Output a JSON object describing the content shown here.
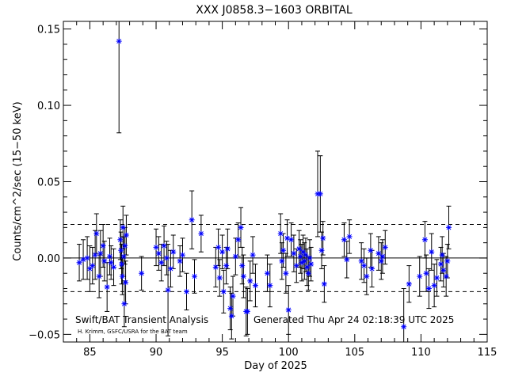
{
  "chart_data": {
    "type": "scatter",
    "title": "XXX J0858.3−1603 ORBITAL",
    "xlabel": "Day of 2025",
    "ylabel": "Counts/cm^2/sec (15−50 keV)",
    "xlim": [
      83,
      115
    ],
    "ylim": [
      -0.055,
      0.155
    ],
    "x_ticks": [
      85,
      90,
      95,
      100,
      105,
      110,
      115
    ],
    "x_tick_labels": [
      "85",
      "90",
      "95",
      "100",
      "105",
      "110",
      "115"
    ],
    "y_ticks": [
      -0.05,
      0,
      0.05,
      0.1,
      0.15
    ],
    "y_tick_labels": [
      "−0.05",
      "0.00",
      "0.05",
      "0.10",
      "0.15"
    ],
    "x_minor_step": 1,
    "y_minor_step": 0.01,
    "zero_line": 0,
    "sigma_lines": [
      0.022,
      -0.022
    ],
    "grid": false,
    "legend": "none",
    "marker_color": "#0000ff",
    "errorbar_color": "#000000",
    "points": [
      [
        84.2,
        -0.003,
        0.012
      ],
      [
        84.5,
        -0.001,
        0.013
      ],
      [
        84.8,
        0.0,
        0.014
      ],
      [
        85.0,
        -0.007,
        0.015
      ],
      [
        85.2,
        -0.005,
        0.012
      ],
      [
        85.4,
        0.002,
        0.016
      ],
      [
        85.5,
        0.016,
        0.013
      ],
      [
        85.7,
        -0.012,
        0.014
      ],
      [
        85.8,
        0.003,
        0.015
      ],
      [
        86.0,
        0.008,
        0.014
      ],
      [
        86.1,
        -0.002,
        0.013
      ],
      [
        86.3,
        -0.019,
        0.016
      ],
      [
        86.5,
        0.001,
        0.012
      ],
      [
        86.6,
        -0.003,
        0.011
      ],
      [
        86.8,
        -0.006,
        0.012
      ],
      [
        87.2,
        0.142,
        0.06
      ],
      [
        87.3,
        0.012,
        0.013
      ],
      [
        87.35,
        0.005,
        0.012
      ],
      [
        87.4,
        -0.004,
        0.013
      ],
      [
        87.45,
        -0.012,
        0.012
      ],
      [
        87.5,
        0.02,
        0.014
      ],
      [
        87.55,
        0.001,
        0.013
      ],
      [
        87.6,
        -0.03,
        0.015
      ],
      [
        87.65,
        0.008,
        0.012
      ],
      [
        87.7,
        -0.016,
        0.014
      ],
      [
        87.75,
        0.015,
        0.013
      ],
      [
        88.9,
        -0.01,
        0.011
      ],
      [
        90.0,
        0.007,
        0.012
      ],
      [
        90.2,
        0.003,
        0.011
      ],
      [
        90.4,
        -0.003,
        0.012
      ],
      [
        90.6,
        0.008,
        0.013
      ],
      [
        90.8,
        0.0,
        0.011
      ],
      [
        90.9,
        -0.021,
        0.03
      ],
      [
        91.1,
        -0.007,
        0.012
      ],
      [
        91.3,
        0.004,
        0.011
      ],
      [
        91.8,
        -0.002,
        0.01
      ],
      [
        92.0,
        0.002,
        0.011
      ],
      [
        92.3,
        -0.022,
        0.012
      ],
      [
        92.7,
        0.025,
        0.019
      ],
      [
        92.9,
        -0.012,
        0.011
      ],
      [
        93.4,
        0.016,
        0.012
      ],
      [
        94.5,
        -0.006,
        0.013
      ],
      [
        94.7,
        0.007,
        0.012
      ],
      [
        94.8,
        -0.013,
        0.012
      ],
      [
        95.0,
        0.004,
        0.011
      ],
      [
        95.1,
        -0.022,
        0.014
      ],
      [
        95.3,
        -0.005,
        0.012
      ],
      [
        95.4,
        0.006,
        0.013
      ],
      [
        95.6,
        -0.033,
        0.014
      ],
      [
        95.7,
        -0.038,
        0.015
      ],
      [
        95.8,
        -0.025,
        0.013
      ],
      [
        96.0,
        0.001,
        0.012
      ],
      [
        96.2,
        0.012,
        0.011
      ],
      [
        96.4,
        0.02,
        0.013
      ],
      [
        96.5,
        -0.005,
        0.012
      ],
      [
        96.6,
        -0.012,
        0.014
      ],
      [
        96.8,
        -0.035,
        0.016
      ],
      [
        96.9,
        -0.035,
        0.015
      ],
      [
        97.1,
        -0.015,
        0.013
      ],
      [
        97.3,
        0.002,
        0.012
      ],
      [
        97.5,
        -0.018,
        0.014
      ],
      [
        98.4,
        -0.01,
        0.012
      ],
      [
        98.6,
        -0.018,
        0.014
      ],
      [
        99.4,
        0.016,
        0.013
      ],
      [
        99.5,
        -0.002,
        0.012
      ],
      [
        99.6,
        0.005,
        0.011
      ],
      [
        99.8,
        -0.01,
        0.013
      ],
      [
        99.9,
        0.013,
        0.012
      ],
      [
        100.0,
        -0.034,
        0.016
      ],
      [
        100.2,
        0.012,
        0.011
      ],
      [
        100.4,
        0.003,
        0.012
      ],
      [
        100.6,
        -0.005,
        0.011
      ],
      [
        100.8,
        0.006,
        0.012
      ],
      [
        100.9,
        0.001,
        0.011
      ],
      [
        101.0,
        -0.003,
        0.012
      ],
      [
        101.1,
        0.004,
        0.011
      ],
      [
        101.2,
        -0.002,
        0.012
      ],
      [
        101.3,
        0.002,
        0.011
      ],
      [
        101.4,
        -0.006,
        0.012
      ],
      [
        101.5,
        -0.01,
        0.011
      ],
      [
        101.6,
        0.0,
        0.012
      ],
      [
        101.7,
        -0.004,
        0.011
      ],
      [
        102.2,
        0.042,
        0.028
      ],
      [
        102.4,
        0.042,
        0.025
      ],
      [
        102.5,
        0.005,
        0.012
      ],
      [
        102.6,
        0.013,
        0.011
      ],
      [
        102.7,
        -0.017,
        0.012
      ],
      [
        104.2,
        0.012,
        0.011
      ],
      [
        104.4,
        -0.001,
        0.012
      ],
      [
        104.6,
        0.014,
        0.011
      ],
      [
        105.5,
        -0.002,
        0.012
      ],
      [
        105.7,
        -0.005,
        0.011
      ],
      [
        105.9,
        -0.012,
        0.012
      ],
      [
        106.2,
        0.005,
        0.011
      ],
      [
        106.3,
        -0.007,
        0.012
      ],
      [
        106.8,
        0.003,
        0.011
      ],
      [
        107.0,
        -0.002,
        0.012
      ],
      [
        107.1,
        0.001,
        0.011
      ],
      [
        107.3,
        0.007,
        0.011
      ],
      [
        108.7,
        -0.045,
        0.025
      ],
      [
        109.1,
        -0.017,
        0.012
      ],
      [
        109.9,
        -0.012,
        0.013
      ],
      [
        110.3,
        0.012,
        0.012
      ],
      [
        110.4,
        -0.01,
        0.012
      ],
      [
        110.6,
        -0.02,
        0.013
      ],
      [
        110.8,
        0.004,
        0.012
      ],
      [
        111.0,
        -0.018,
        0.014
      ],
      [
        111.2,
        -0.013,
        0.012
      ],
      [
        111.5,
        -0.004,
        0.011
      ],
      [
        111.6,
        0.002,
        0.012
      ],
      [
        111.7,
        -0.008,
        0.011
      ],
      [
        111.9,
        -0.012,
        0.013
      ],
      [
        112.1,
        0.02,
        0.014
      ],
      [
        112.0,
        -0.002,
        0.011
      ]
    ]
  },
  "footer": {
    "analysis_label": "Swift/BAT Transient Analysis",
    "generated_label": "Generated Thu Apr 24 02:18:39 UTC 2025",
    "credit_label": "H. Krimm, GSFC/USRA for the BAT team"
  }
}
